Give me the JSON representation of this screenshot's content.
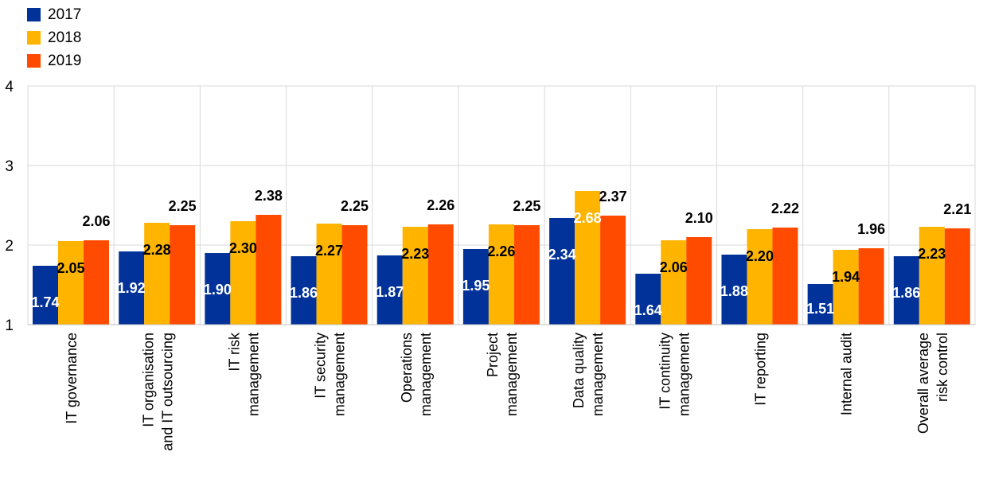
{
  "chart_data": {
    "type": "bar",
    "categories": [
      [
        "IT governance"
      ],
      [
        "IT organisation",
        "and IT outsourcing"
      ],
      [
        "IT risk",
        "management"
      ],
      [
        "IT security",
        "management"
      ],
      [
        "Operations",
        "management"
      ],
      [
        "Project",
        "management"
      ],
      [
        "Data quality",
        "management"
      ],
      [
        "IT continuity",
        "management"
      ],
      [
        "IT reporting"
      ],
      [
        "Internal audit"
      ],
      [
        "Overall average",
        "risk control"
      ]
    ],
    "series": [
      {
        "name": "2017",
        "color": "#003299",
        "values": [
          1.74,
          1.92,
          1.9,
          1.86,
          1.87,
          1.95,
          2.34,
          1.64,
          1.88,
          1.51,
          1.86
        ],
        "labels": [
          "1.74",
          "1.92",
          "1.90",
          "1.86",
          "1.87",
          "1.95",
          "2.34",
          "1.64",
          "1.88",
          "1.51",
          "1.86"
        ]
      },
      {
        "name": "2018",
        "color": "#FFB400",
        "values": [
          2.05,
          2.28,
          2.3,
          2.27,
          2.23,
          2.26,
          2.68,
          2.06,
          2.2,
          1.94,
          2.23
        ],
        "labels": [
          "2.05",
          "2.28",
          "2.30",
          "2.27",
          "2.23",
          "2.26",
          "2.68",
          "2.06",
          "2.20",
          "1.94",
          "2.23"
        ]
      },
      {
        "name": "2019",
        "color": "#FF4B00",
        "values": [
          2.06,
          2.25,
          2.38,
          2.25,
          2.26,
          2.25,
          2.37,
          2.1,
          2.22,
          1.96,
          2.21
        ],
        "labels": [
          "2.06",
          "2.25",
          "2.38",
          "2.25",
          "2.26",
          "2.25",
          "2.37",
          "2.10",
          "2.22",
          "1.96",
          "2.21"
        ]
      }
    ],
    "yticks": [
      "1",
      "2",
      "3",
      "4"
    ],
    "ylim": [
      1,
      4
    ],
    "grid": true,
    "legend_position": "top-left"
  }
}
